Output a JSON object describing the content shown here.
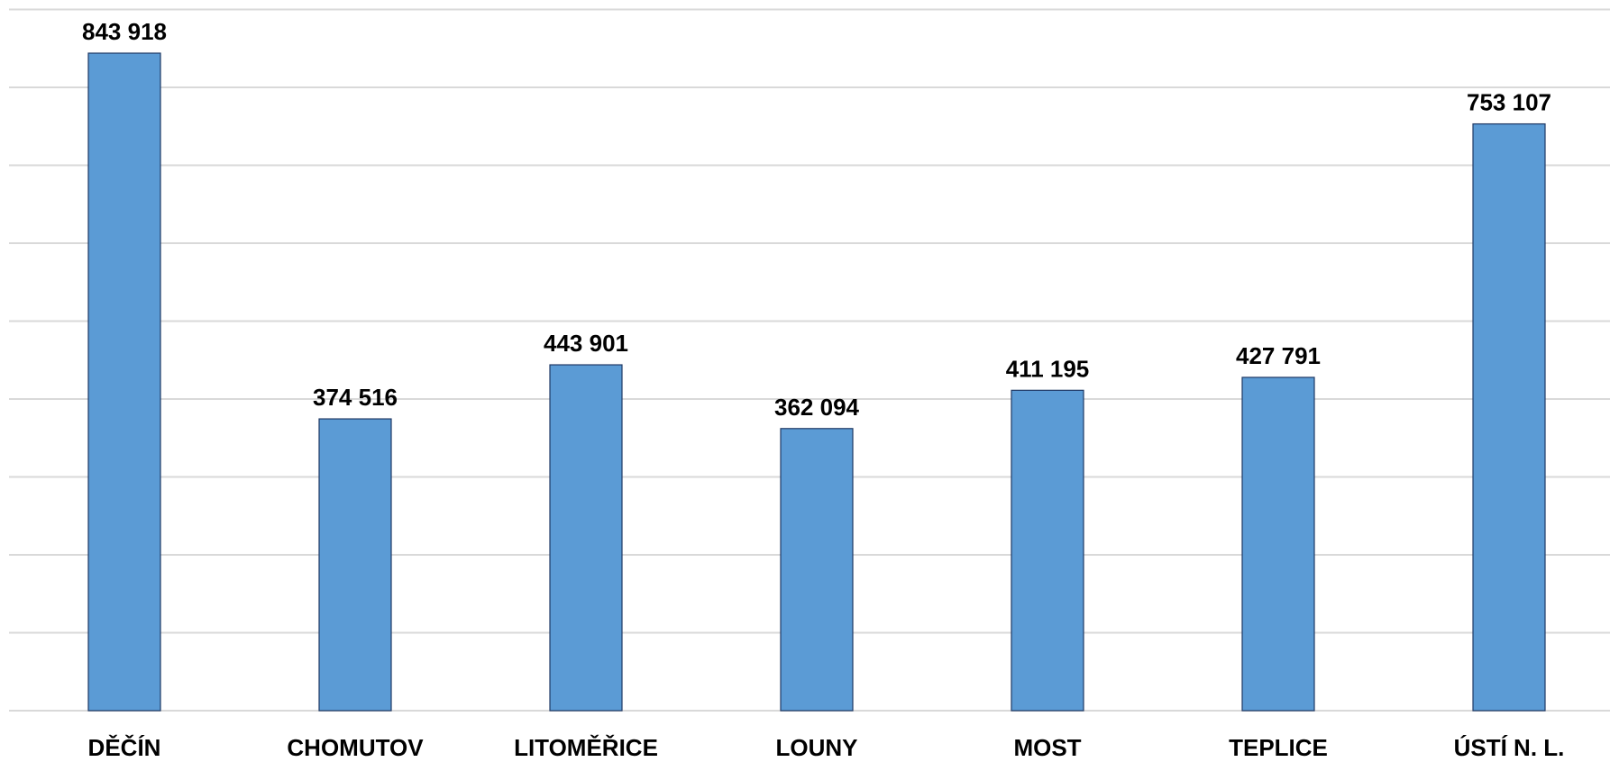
{
  "chart_data": {
    "type": "bar",
    "title": "",
    "xlabel": "",
    "ylabel": "",
    "categories": [
      "DĚČÍN",
      "CHOMUTOV",
      "LITOMĚŘICE",
      "LOUNY",
      "MOST",
      "TEPLICE",
      "ÚSTÍ N. L."
    ],
    "values": [
      843918,
      374516,
      443901,
      362094,
      411195,
      427791,
      753107
    ],
    "data_labels": [
      "843 918",
      "374 516",
      "443 901",
      "362 094",
      "411 195",
      "427 791",
      "753 107"
    ],
    "ylim": [
      0,
      900000
    ],
    "y_gridline_step": 100000,
    "y_tick_labels_shown": false,
    "grid": true,
    "legend": "none",
    "bar_color": "#5b9bd5",
    "bar_border_color": "#1f3864",
    "gridline_color": "#d9d9d9"
  }
}
